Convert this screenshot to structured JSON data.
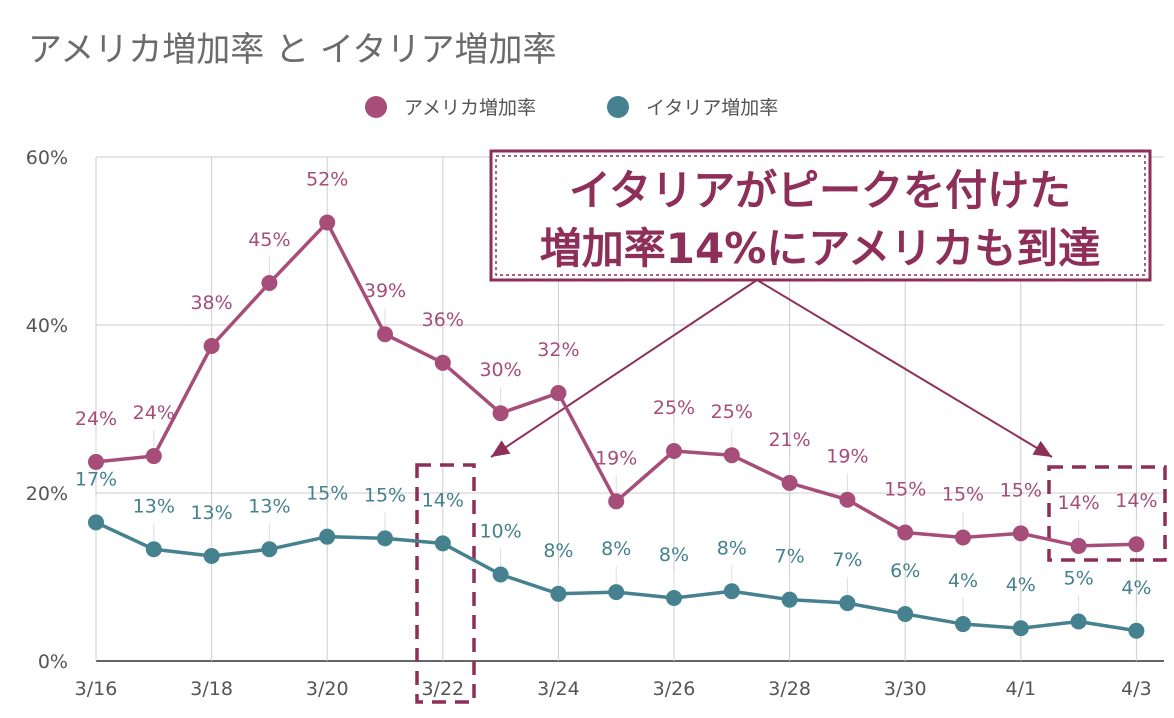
{
  "chart_data": {
    "type": "line",
    "title": "アメリカ増加率 と イタリア増加率",
    "x": [
      "3/16",
      "3/17",
      "3/18",
      "3/19",
      "3/20",
      "3/21",
      "3/22",
      "3/23",
      "3/24",
      "3/25",
      "3/26",
      "3/27",
      "3/28",
      "3/29",
      "3/30",
      "3/31",
      "4/1",
      "4/2",
      "4/3"
    ],
    "x_tick_labels": [
      "3/16",
      "3/18",
      "3/20",
      "3/22",
      "3/24",
      "3/26",
      "3/28",
      "3/30",
      "4/1",
      "4/3"
    ],
    "y_tick_labels": [
      "0%",
      "20%",
      "40%",
      "60%"
    ],
    "ylim": [
      0,
      60
    ],
    "grid": true,
    "legend_position": "top-center",
    "series": [
      {
        "name": "アメリカ増加率",
        "color": "#a64d79",
        "values": [
          23.7,
          24.4,
          37.5,
          45.0,
          52.2,
          38.9,
          35.5,
          29.5,
          31.9,
          19.0,
          25.0,
          24.5,
          21.2,
          19.2,
          15.3,
          14.7,
          15.2,
          13.7,
          13.9
        ],
        "labels": [
          "24%",
          "24%",
          "38%",
          "45%",
          "52%",
          "39%",
          "36%",
          "30%",
          "32%",
          "19%",
          "25%",
          "25%",
          "21%",
          "19%",
          "15%",
          "15%",
          "15%",
          "14%",
          "14%"
        ]
      },
      {
        "name": "イタリア増加率",
        "color": "#45818e",
        "values": [
          16.5,
          13.3,
          12.5,
          13.3,
          14.8,
          14.6,
          14.0,
          10.3,
          8.0,
          8.2,
          7.5,
          8.3,
          7.3,
          6.9,
          5.6,
          4.4,
          3.9,
          4.7,
          3.6
        ],
        "labels": [
          "17%",
          "13%",
          "13%",
          "13%",
          "15%",
          "15%",
          "14%",
          "10%",
          "8%",
          "8%",
          "8%",
          "8%",
          "7%",
          "7%",
          "6%",
          "4%",
          "4%",
          "5%",
          "4%"
        ]
      }
    ],
    "annotation": {
      "lines": [
        "イタリアがピークを付けた",
        "増加率14%にアメリカも到達"
      ],
      "color": "#8e2f59"
    }
  }
}
